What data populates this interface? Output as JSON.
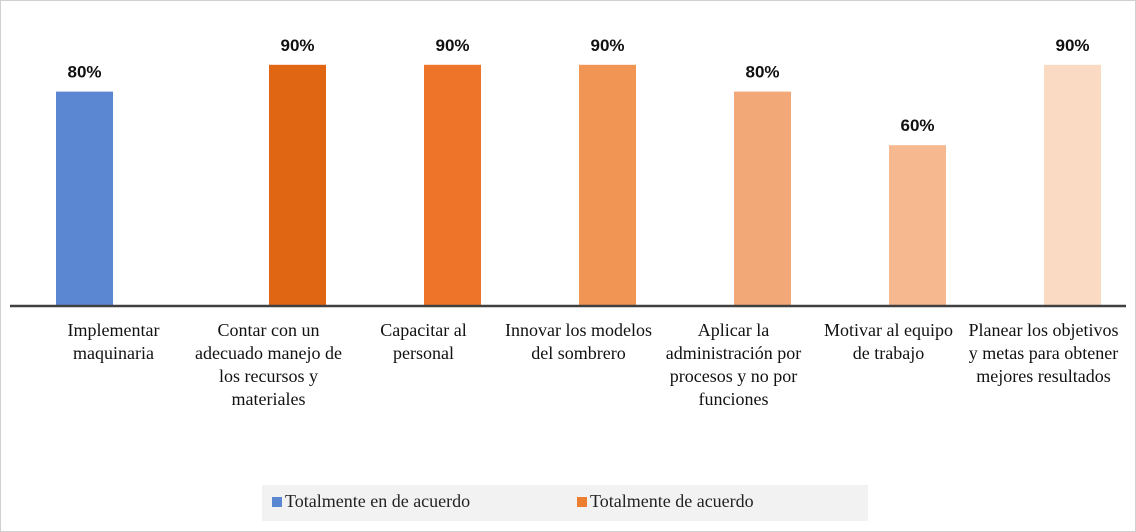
{
  "chart_data": {
    "type": "bar",
    "categories": [
      "Implementar maquinaria",
      "Contar con un adecuado manejo de los recursos y materiales",
      "Capacitar al personal",
      "Innovar los modelos del sombrero",
      "Aplicar la administración por procesos y no por funciones",
      "Motivar al equipo de trabajo",
      "Planear los objetivos y metas para obtener mejores resultados"
    ],
    "series": [
      {
        "name": "Totalmente en de acuerdo",
        "color": "#5b87d2",
        "values": [
          80,
          null,
          null,
          null,
          null,
          null,
          null
        ],
        "value_labels": [
          "80%",
          null,
          null,
          null,
          null,
          null,
          null
        ]
      },
      {
        "name": "Totalmente de acuerdo",
        "color": "#ed7d31",
        "colors": [
          null,
          "#e06614",
          "#ed7428",
          "#f09553",
          "#f3a877",
          "#f5b88f",
          "#fadac3"
        ],
        "values": [
          null,
          90,
          90,
          90,
          80,
          60,
          90
        ],
        "value_labels": [
          null,
          "90%",
          "90%",
          "90%",
          "80%",
          "60%",
          "90%"
        ]
      }
    ],
    "ylim": [
      0,
      100
    ],
    "legend": "bottom"
  }
}
